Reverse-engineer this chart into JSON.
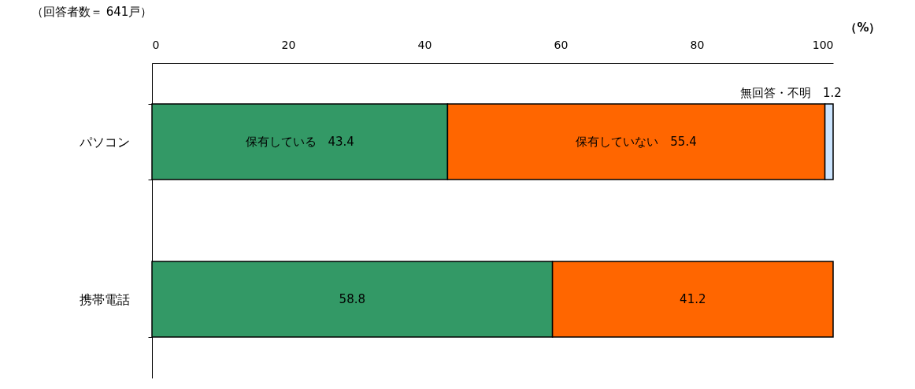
{
  "chart_data": {
    "type": "bar",
    "orientation": "horizontal",
    "stacked": true,
    "categories": [
      "パソコン",
      "携帯電話"
    ],
    "series": [
      {
        "name": "保有している",
        "color": "#339966",
        "values": [
          43.4,
          58.8
        ],
        "value_labels": [
          "43.4",
          "58.8"
        ]
      },
      {
        "name": "保有していない",
        "color": "#ff6600",
        "values": [
          55.4,
          41.2
        ],
        "value_labels": [
          "55.4",
          "41.2"
        ]
      },
      {
        "name": "無回答・不明",
        "color": "#cce5ff",
        "values": [
          1.2,
          null
        ],
        "value_labels": [
          "1.2",
          null
        ]
      }
    ],
    "xlim": [
      0,
      100
    ],
    "xticks": [
      0,
      20,
      40,
      60,
      80,
      100
    ],
    "xlabel": "（%）",
    "grid": false,
    "legend": false,
    "annotations": [
      "（回答者数＝ 641戸）"
    ]
  }
}
